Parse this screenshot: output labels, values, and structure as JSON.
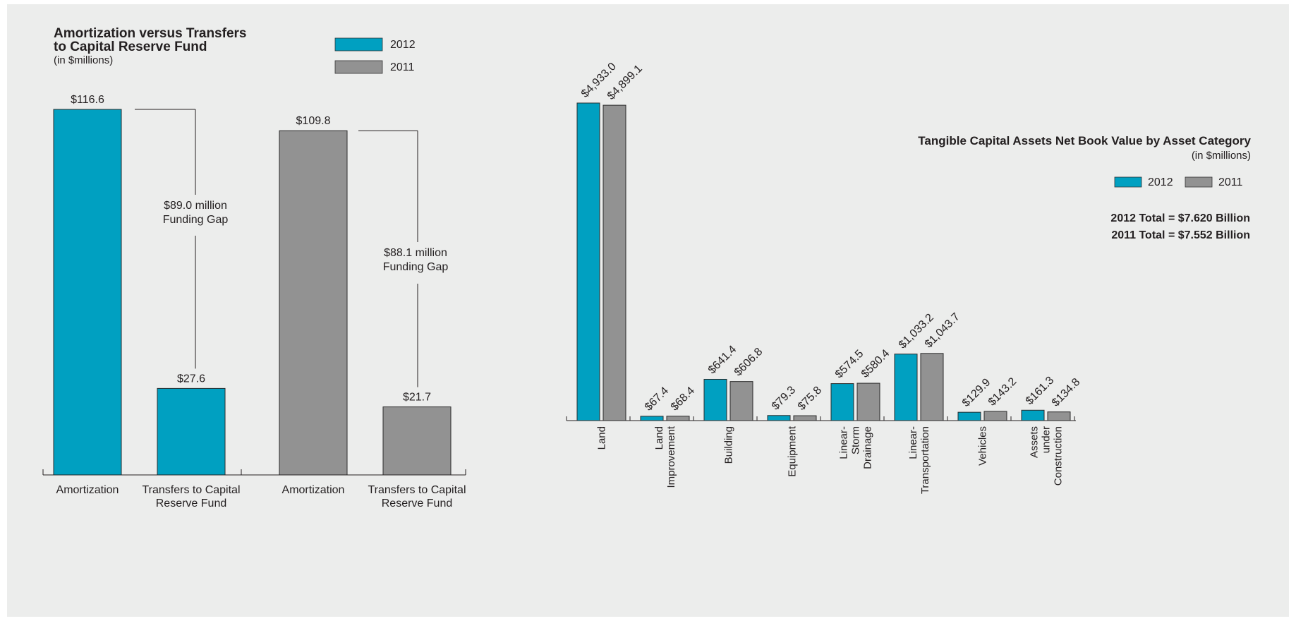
{
  "colors": {
    "c2012": "#00a0c1",
    "c2011": "#929292",
    "panel_bg": "#ecedec",
    "axis": "#231f20"
  },
  "chart_data": [
    {
      "type": "bar",
      "title": "Amortization versus Transfers to Capital Reserve Fund",
      "title_lines": [
        "Amortization versus Transfers",
        "to Capital Reserve Fund"
      ],
      "subtitle": "(in $millions)",
      "legend": [
        {
          "name": "2012",
          "color": "#00a0c1"
        },
        {
          "name": "2011",
          "color": "#929292"
        }
      ],
      "legend_position": "top-right",
      "bars": [
        {
          "category": "Amortization",
          "category_lines": [
            "Amortization"
          ],
          "series": "2012",
          "value": 116.6,
          "label": "$116.6"
        },
        {
          "category": "Transfers to Capital Reserve Fund",
          "category_lines": [
            "Transfers to Capital",
            "Reserve Fund"
          ],
          "series": "2012",
          "value": 27.6,
          "label": "$27.6"
        },
        {
          "category": "Amortization",
          "category_lines": [
            "Amortization"
          ],
          "series": "2011",
          "value": 109.8,
          "label": "$109.8"
        },
        {
          "category": "Transfers to Capital Reserve Fund",
          "category_lines": [
            "Transfers to Capital",
            "Reserve Fund"
          ],
          "series": "2011",
          "value": 21.7,
          "label": "$21.7"
        }
      ],
      "annotations": [
        {
          "text_lines": [
            "$89.0 million",
            "Funding Gap"
          ],
          "from": 116.6,
          "to": 27.6
        },
        {
          "text_lines": [
            "$88.1 million",
            "Funding Gap"
          ],
          "from": 109.8,
          "to": 21.7
        }
      ],
      "ylim": [
        0,
        120
      ],
      "grid": false
    },
    {
      "type": "bar",
      "title": "Tangible Capital Assets Net Book Value by Asset Category",
      "subtitle": "(in $millions)",
      "legend": [
        {
          "name": "2012",
          "color": "#00a0c1"
        },
        {
          "name": "2011",
          "color": "#929292"
        }
      ],
      "legend_position": "right",
      "totals": [
        "2012 Total = $7.620 Billion",
        "2011 Total = $7.552 Billion"
      ],
      "categories": [
        "Land",
        "Land Improvement",
        "Building",
        "Equipment",
        "Linear-Storm Drainage",
        "Linear-Transportation",
        "Vehicles",
        "Assets under Construction"
      ],
      "category_lines": [
        [
          "Land"
        ],
        [
          "Land",
          "Improvement"
        ],
        [
          "Building"
        ],
        [
          "Equipment"
        ],
        [
          "Linear-",
          "Storm",
          "Drainage"
        ],
        [
          "Linear-",
          "Transportation"
        ],
        [
          "Vehicles"
        ],
        [
          "Assets",
          "under",
          "Construction"
        ]
      ],
      "series": [
        {
          "name": "2012",
          "values": [
            4933.0,
            67.4,
            641.4,
            79.3,
            574.5,
            1033.2,
            129.9,
            161.3
          ],
          "labels": [
            "$4,933.0",
            "$67.4",
            "$641.4",
            "$79.3",
            "$574.5",
            "$1,033.2",
            "$129.9",
            "$161.3"
          ]
        },
        {
          "name": "2011",
          "values": [
            4899.1,
            68.4,
            606.8,
            75.8,
            580.4,
            1043.7,
            143.2,
            134.8
          ],
          "labels": [
            "$4,899.1",
            "$68.4",
            "$606.8",
            "$75.8",
            "$580.4",
            "$1,043.7",
            "$143.2",
            "$134.8"
          ]
        }
      ],
      "ylim": [
        0,
        4933.0
      ],
      "grid": false
    }
  ]
}
